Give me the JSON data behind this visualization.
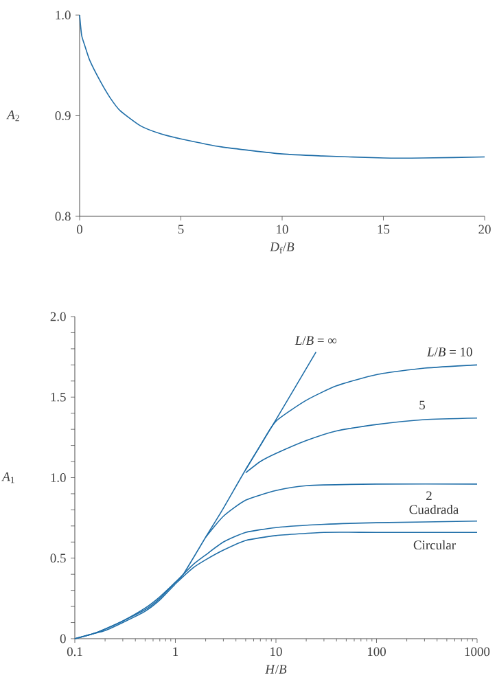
{
  "chart_data": [
    {
      "type": "line",
      "xlabel": "*D*$_{f}$/*B*",
      "ylabel": "*A*$_{2}$",
      "xlim": [
        0,
        20
      ],
      "ylim": [
        0.8,
        1.0
      ],
      "xticks": [
        0,
        5,
        10,
        15,
        20
      ],
      "yticks": [
        {
          "value": 0.8,
          "label": "0.8"
        },
        {
          "value": 0.9,
          "label": "0.9"
        },
        {
          "value": 1.0,
          "label": "1.0"
        }
      ],
      "legend": false,
      "grid": false,
      "series": [
        {
          "color": "#1f6ea8",
          "x": [
            0,
            0.1,
            0.25,
            0.5,
            1,
            1.5,
            2,
            3,
            4,
            5,
            7,
            10,
            12,
            15,
            17,
            20
          ],
          "values": [
            1.0,
            0.98,
            0.97,
            0.955,
            0.935,
            0.918,
            0.905,
            0.89,
            0.882,
            0.877,
            0.869,
            0.862,
            0.86,
            0.858,
            0.858,
            0.859
          ]
        }
      ]
    },
    {
      "type": "line",
      "log": "x",
      "xlabel": "*H*/*B*",
      "ylabel": "*A*$_{1}$",
      "xlim": [
        0.1,
        1000
      ],
      "ylim": [
        0,
        2.0
      ],
      "xticks": [
        0.1,
        1,
        10,
        100,
        1000
      ],
      "yticks": [
        0,
        {
          "value": 0.1,
          "label": null
        },
        {
          "value": 0.2,
          "label": null
        },
        {
          "value": 0.3,
          "label": null
        },
        {
          "value": 0.4,
          "label": null
        },
        0.5,
        {
          "value": 0.6,
          "label": null
        },
        {
          "value": 0.7,
          "label": null
        },
        {
          "value": 0.8,
          "label": null
        },
        {
          "value": 0.9,
          "label": null
        },
        {
          "value": 1.0,
          "label": "1.0"
        },
        {
          "value": 1.1,
          "label": null
        },
        {
          "value": 1.2,
          "label": null
        },
        {
          "value": 1.3,
          "label": null
        },
        {
          "value": 1.4,
          "label": null
        },
        1.5,
        {
          "value": 1.6,
          "label": null
        },
        {
          "value": 1.7,
          "label": null
        },
        {
          "value": 1.8,
          "label": null
        },
        {
          "value": 1.9,
          "label": null
        },
        {
          "value": 2.0,
          "label": "2.0"
        }
      ],
      "legend": false,
      "grid": false,
      "series": [
        {
          "name": "*L*/*B* = ∞",
          "color": "#1f6ea8",
          "x": [
            0.1,
            0.15,
            0.2,
            0.3,
            0.5,
            0.7,
            1,
            1.2,
            2,
            3,
            5,
            10,
            25
          ],
          "values": [
            0,
            0.03,
            0.06,
            0.11,
            0.19,
            0.26,
            0.35,
            0.4,
            0.63,
            0.81,
            1.05,
            1.36,
            1.78
          ]
        },
        {
          "name": "*L*/*B* = 10",
          "color": "#1f6ea8",
          "x": [
            5,
            7,
            10,
            20,
            40,
            100,
            300,
            1000
          ],
          "values": [
            1.05,
            1.2,
            1.35,
            1.48,
            1.57,
            1.64,
            1.68,
            1.7
          ]
        },
        {
          "name": "5",
          "color": "#1f6ea8",
          "x": [
            5,
            7,
            10,
            20,
            40,
            100,
            300,
            1000
          ],
          "values": [
            1.03,
            1.1,
            1.15,
            1.23,
            1.29,
            1.33,
            1.36,
            1.37
          ]
        },
        {
          "name": "2",
          "color": "#1f6ea8",
          "x": [
            2,
            3,
            5,
            10,
            20,
            100,
            1000
          ],
          "values": [
            0.63,
            0.76,
            0.86,
            0.92,
            0.95,
            0.96,
            0.96
          ]
        },
        {
          "name": "Cuadrada",
          "color": "#1f6ea8",
          "x": [
            0.1,
            0.15,
            0.2,
            0.3,
            0.5,
            0.7,
            1,
            1.5,
            2,
            3,
            5,
            10,
            30,
            100,
            1000
          ],
          "values": [
            0,
            0.03,
            0.06,
            0.11,
            0.18,
            0.25,
            0.35,
            0.46,
            0.52,
            0.6,
            0.66,
            0.69,
            0.71,
            0.72,
            0.73
          ]
        },
        {
          "name": "Circular",
          "color": "#1f6ea8",
          "x": [
            0.1,
            0.15,
            0.2,
            0.3,
            0.5,
            0.7,
            1,
            1.5,
            2,
            3,
            5,
            10,
            30,
            100,
            1000
          ],
          "values": [
            0,
            0.03,
            0.05,
            0.1,
            0.17,
            0.24,
            0.34,
            0.44,
            0.49,
            0.55,
            0.61,
            0.64,
            0.66,
            0.66,
            0.66
          ]
        }
      ]
    }
  ]
}
